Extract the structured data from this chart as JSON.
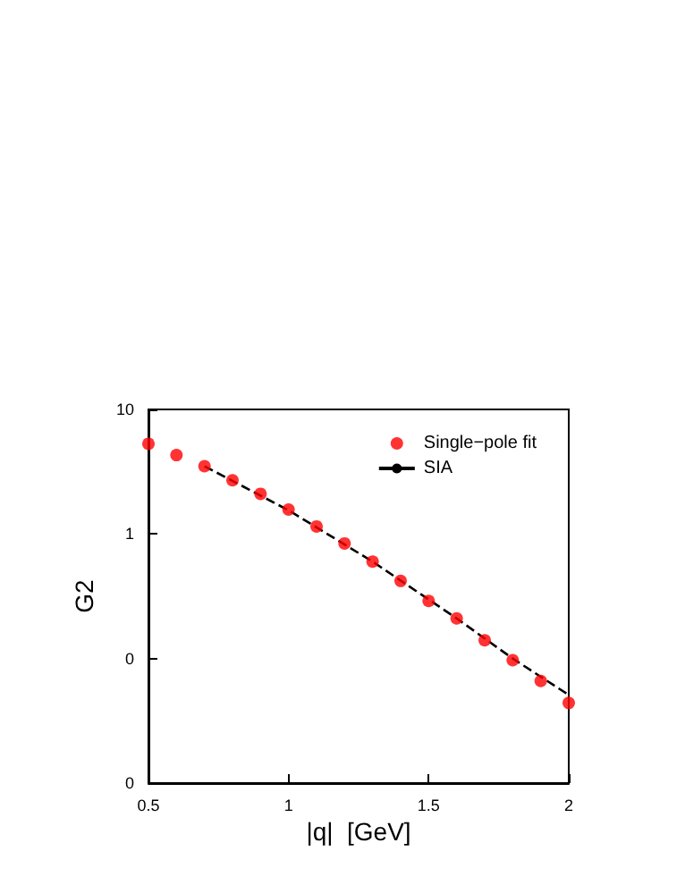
{
  "chart_data": {
    "type": "scatter",
    "xlabel": "|q|  [GeV]",
    "ylabel": "G2",
    "x": [
      0.5,
      0.6,
      0.7,
      0.8,
      0.9,
      1.0,
      1.1,
      1.2,
      1.3,
      1.4,
      1.5,
      1.6,
      1.7,
      1.8,
      1.9,
      2.0
    ],
    "series": [
      {
        "name": "Single−pole fit",
        "color": "#ff0000",
        "marker": "circle",
        "values": [
          5.3,
          4.3,
          3.5,
          2.7,
          2.1,
          1.57,
          1.15,
          0.84,
          0.6,
          0.42,
          0.29,
          0.21,
          0.14,
          0.097,
          0.066,
          0.044
        ]
      },
      {
        "name": "SIA",
        "type": "line",
        "color": "#000000",
        "line_style": "dashed",
        "marker": "none",
        "x": [
          0.7,
          1.0,
          1.3,
          1.6,
          1.8,
          2.0
        ],
        "values": [
          3.5,
          1.55,
          0.6,
          0.21,
          0.1,
          0.051
        ]
      }
    ],
    "xlim": [
      0.5,
      2
    ],
    "xticks": [
      0.5,
      1,
      1.5,
      2
    ],
    "ylim": [
      0.01,
      10
    ],
    "yticks": [
      10,
      1,
      {
        "value": 0.1,
        "label": "0"
      },
      {
        "value": 0.01,
        "label": "0"
      }
    ],
    "log": "y",
    "grid": false,
    "legend": "top right"
  }
}
